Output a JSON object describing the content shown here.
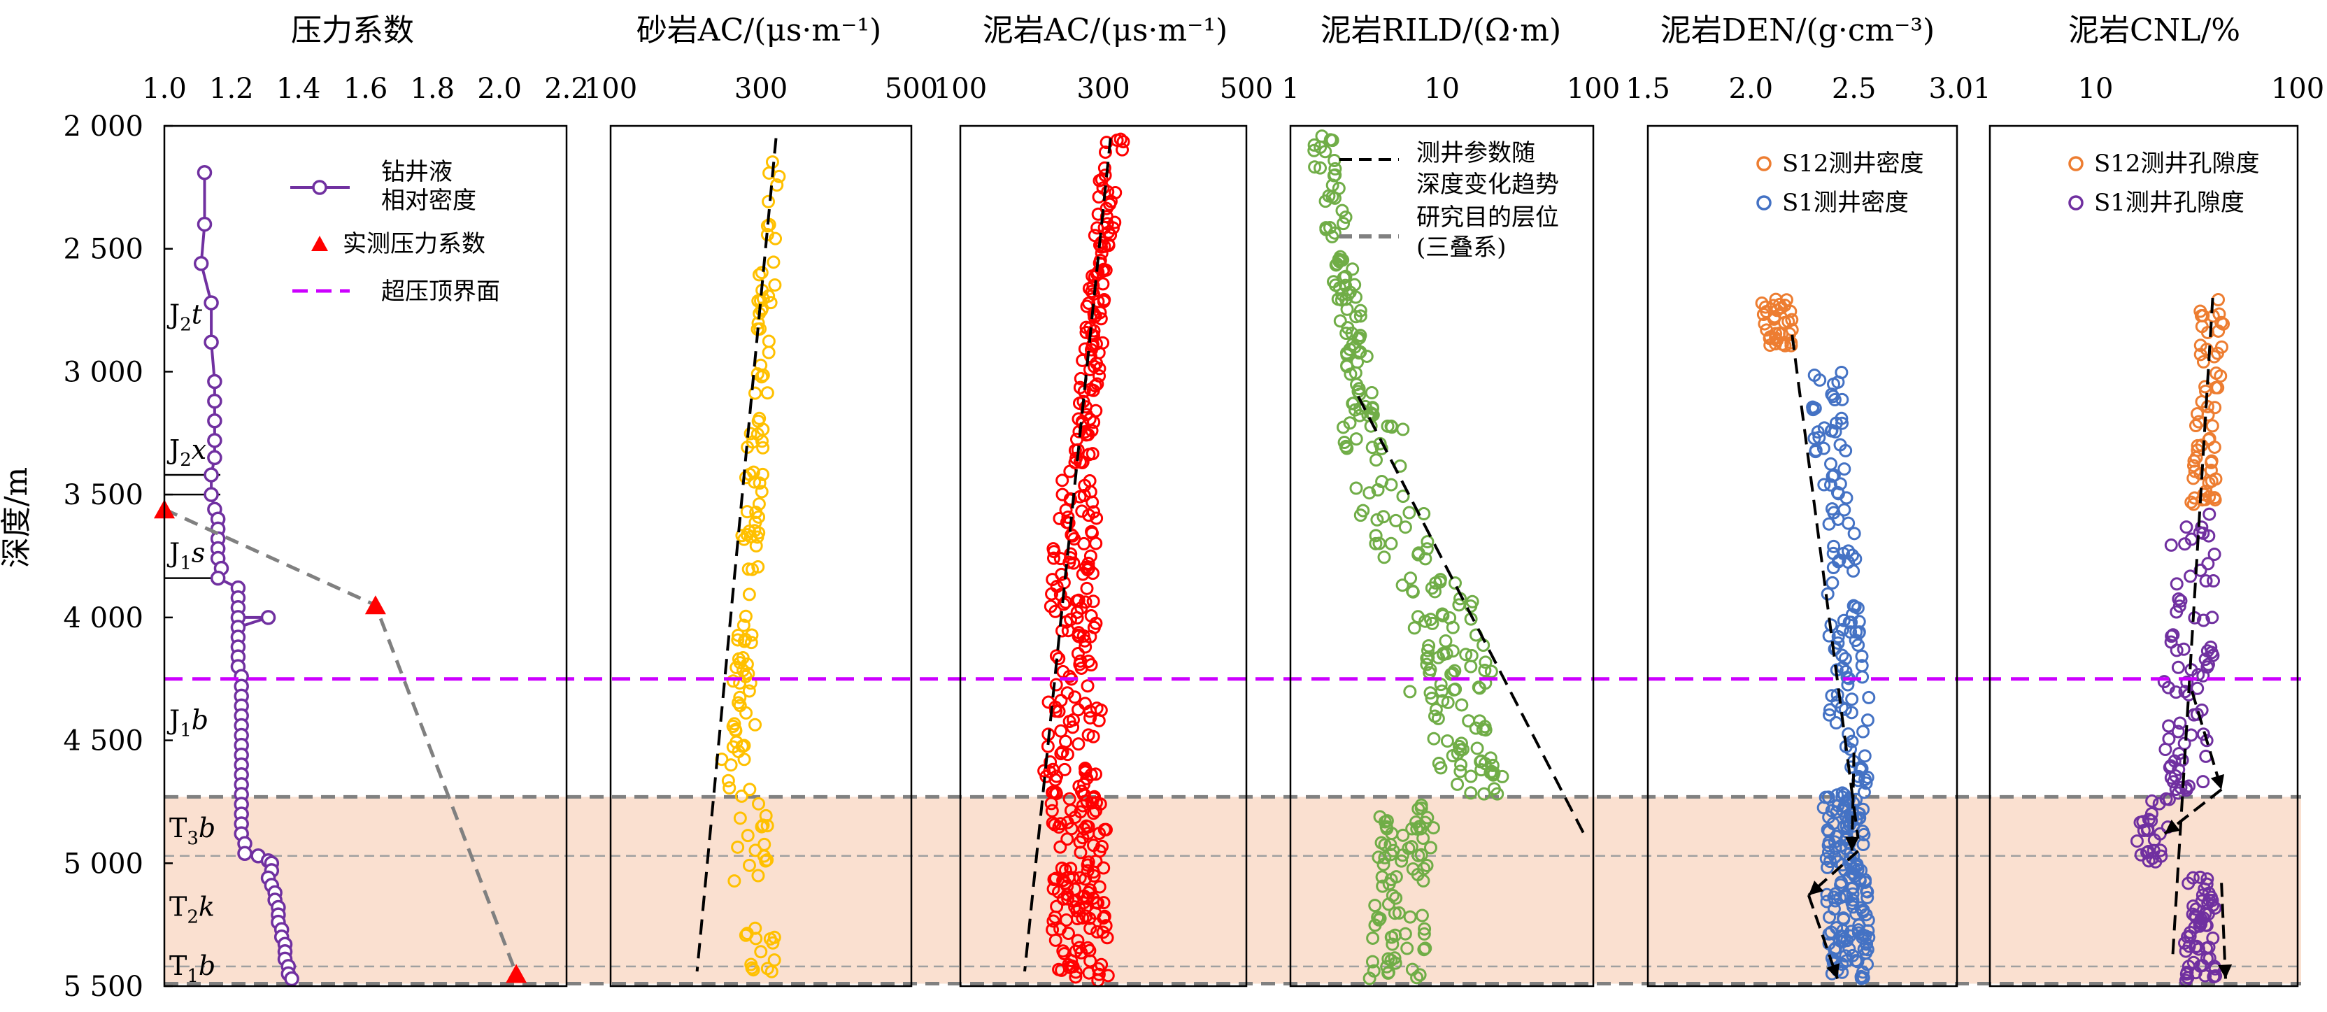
{
  "figure": {
    "y_axis_label": "深度/m",
    "y_ticks": [
      "2 000",
      "2 500",
      "3 000",
      "3 500",
      "4 000",
      "4 500",
      "5 000",
      "5 500"
    ],
    "overpressure_depth_m": 4250,
    "triassic_band_m": [
      4730,
      5490
    ],
    "colors": {
      "purple": "#7030a0",
      "red_marker": "#ff0000",
      "overpressure_line": "#cc00ff",
      "gray_dash": "#808080",
      "band_fill": "#fae0d0",
      "sand_ac": "#ffc000",
      "mud_ac": "#ff0000",
      "rild": "#70ad47",
      "s12": "#ed7d31",
      "s1_den": "#4472c4",
      "s1_cnl": "#7030a0",
      "trend": "#000000"
    }
  },
  "chart_data": [
    {
      "type": "line",
      "title": "压力系数",
      "x_ticks": [
        "1.0",
        "1.2",
        "1.4",
        "1.6",
        "1.8",
        "2.0",
        "2.2"
      ],
      "xlim": [
        1.0,
        2.2
      ],
      "ylim": [
        2000,
        5500
      ],
      "legend": [
        "钻井液",
        "相对密度",
        "实测压力系数",
        "超压顶界面"
      ],
      "series": [
        {
          "name": "钻井液相对密度",
          "points": [
            [
              1.12,
              2190
            ],
            [
              1.12,
              2400
            ],
            [
              1.11,
              2560
            ],
            [
              1.14,
              2720
            ],
            [
              1.14,
              2880
            ],
            [
              1.15,
              3040
            ],
            [
              1.15,
              3120
            ],
            [
              1.15,
              3200
            ],
            [
              1.15,
              3280
            ],
            [
              1.15,
              3350
            ],
            [
              1.14,
              3420
            ],
            [
              1.14,
              3500
            ],
            [
              1.15,
              3560
            ],
            [
              1.16,
              3600
            ],
            [
              1.16,
              3640
            ],
            [
              1.16,
              3680
            ],
            [
              1.16,
              3720
            ],
            [
              1.16,
              3760
            ],
            [
              1.17,
              3800
            ],
            [
              1.16,
              3840
            ],
            [
              1.22,
              3880
            ],
            [
              1.22,
              3920
            ],
            [
              1.22,
              3960
            ],
            [
              1.22,
              4000
            ],
            [
              1.31,
              4000
            ],
            [
              1.22,
              4040
            ],
            [
              1.22,
              4080
            ],
            [
              1.22,
              4120
            ],
            [
              1.22,
              4160
            ],
            [
              1.22,
              4200
            ],
            [
              1.23,
              4240
            ],
            [
              1.23,
              4280
            ],
            [
              1.23,
              4320
            ],
            [
              1.23,
              4360
            ],
            [
              1.23,
              4400
            ],
            [
              1.23,
              4440
            ],
            [
              1.23,
              4480
            ],
            [
              1.23,
              4520
            ],
            [
              1.23,
              4560
            ],
            [
              1.23,
              4600
            ],
            [
              1.23,
              4640
            ],
            [
              1.23,
              4680
            ],
            [
              1.23,
              4720
            ],
            [
              1.23,
              4760
            ],
            [
              1.23,
              4800
            ],
            [
              1.23,
              4840
            ],
            [
              1.23,
              4880
            ],
            [
              1.24,
              4920
            ],
            [
              1.24,
              4960
            ],
            [
              1.28,
              4970
            ],
            [
              1.31,
              4990
            ],
            [
              1.32,
              5000
            ],
            [
              1.32,
              5030
            ],
            [
              1.31,
              5060
            ],
            [
              1.32,
              5090
            ],
            [
              1.33,
              5120
            ],
            [
              1.33,
              5150
            ],
            [
              1.34,
              5180
            ],
            [
              1.34,
              5210
            ],
            [
              1.34,
              5240
            ],
            [
              1.35,
              5270
            ],
            [
              1.35,
              5300
            ],
            [
              1.36,
              5330
            ],
            [
              1.36,
              5360
            ],
            [
              1.36,
              5390
            ],
            [
              1.37,
              5420
            ],
            [
              1.37,
              5450
            ],
            [
              1.38,
              5470
            ]
          ]
        },
        {
          "name": "实测压力系数",
          "points": [
            [
              1.0,
              3560
            ],
            [
              1.63,
              3950
            ],
            [
              2.05,
              5450
            ]
          ]
        }
      ],
      "strata": [
        {
          "base": "J",
          "sub": "2",
          "tail": "t",
          "depth": 2770
        },
        {
          "base": "J",
          "sub": "2",
          "tail": "x",
          "depth": 3320
        },
        {
          "base": "J",
          "sub": "1",
          "tail": "s",
          "depth": 3740
        },
        {
          "base": "J",
          "sub": "1",
          "tail": "b",
          "depth": 4420
        },
        {
          "base": "T",
          "sub": "3",
          "tail": "b",
          "depth": 4860
        },
        {
          "base": "T",
          "sub": "2",
          "tail": "k",
          "depth": 5180
        },
        {
          "base": "T",
          "sub": "1",
          "tail": "b",
          "depth": 5420
        }
      ],
      "strata_boundaries_m": [
        3420,
        3500,
        3840,
        4970,
        5420
      ]
    },
    {
      "type": "scatter",
      "title": "砂岩AC/(μs·m⁻¹)",
      "x_ticks": [
        "100",
        "300",
        "500"
      ],
      "xlim": [
        100,
        500
      ],
      "ylim": [
        2000,
        5500
      ],
      "trend": [
        [
          320,
          2050
        ],
        [
          215,
          5440
        ]
      ]
    },
    {
      "type": "scatter",
      "title": "泥岩AC/(μs·m⁻¹)",
      "x_ticks": [
        "100",
        "300",
        "500"
      ],
      "xlim": [
        100,
        500
      ],
      "ylim": [
        2000,
        5500
      ],
      "trend": [
        [
          310,
          2050
        ],
        [
          190,
          5440
        ]
      ]
    },
    {
      "type": "scatter",
      "title": "泥岩RILD/(Ω·m)",
      "x_ticks": [
        "1",
        "10",
        "100"
      ],
      "xlim": [
        1,
        100
      ],
      "x_scale": "log",
      "ylim": [
        2000,
        5500
      ],
      "legend": [
        "测井参数随",
        "深度变化趋势",
        "研究目的层位",
        "(三叠系)"
      ],
      "trend": [
        [
          2.8,
          3100
        ],
        [
          90,
          4900
        ]
      ]
    },
    {
      "type": "scatter",
      "title": "泥岩DEN/(g·cm⁻³)",
      "x_ticks": [
        "1.5",
        "2.0",
        "2.5",
        "3.01"
      ],
      "xlim": [
        1.5,
        3.0
      ],
      "ylim": [
        2000,
        5500
      ],
      "legend": [
        "S12测井密度",
        "S1测井密度"
      ],
      "trend": [
        [
          2.2,
          2850
        ],
        [
          2.52,
          4900
        ]
      ]
    },
    {
      "type": "scatter",
      "title": "泥岩CNL/%",
      "x_ticks": [
        "10",
        "100"
      ],
      "xlim": [
        3,
        100
      ],
      "x_scale": "log",
      "ylim": [
        2000,
        5500
      ],
      "legend": [
        "S12测井孔隙度",
        "S1测井孔隙度"
      ],
      "trend": [
        [
          38,
          2700
        ],
        [
          24,
          5400
        ]
      ]
    }
  ]
}
